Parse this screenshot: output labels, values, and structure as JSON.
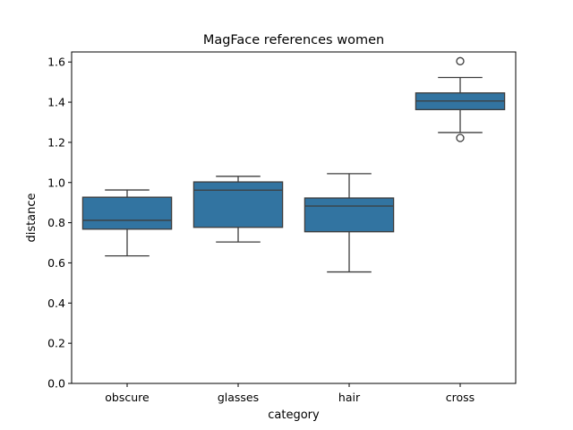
{
  "chart_data": {
    "type": "box",
    "title": "MagFace references women",
    "xlabel": "category",
    "ylabel": "distance",
    "ylim": [
      0.0,
      1.65
    ],
    "yticks": [
      0.0,
      0.2,
      0.4,
      0.6,
      0.8,
      1.0,
      1.2,
      1.4,
      1.6
    ],
    "ytick_labels": [
      "0.0",
      "0.2",
      "0.4",
      "0.6",
      "0.8",
      "1.0",
      "1.2",
      "1.4",
      "1.6"
    ],
    "categories": [
      "obscure",
      "glasses",
      "hair",
      "cross"
    ],
    "boxes": [
      {
        "category": "obscure",
        "whisker_low": 0.635,
        "q1": 0.768,
        "median": 0.812,
        "q3": 0.927,
        "whisker_high": 0.963,
        "outliers": []
      },
      {
        "category": "glasses",
        "whisker_low": 0.704,
        "q1": 0.777,
        "median": 0.962,
        "q3": 1.003,
        "whisker_high": 1.031,
        "outliers": []
      },
      {
        "category": "hair",
        "whisker_low": 0.555,
        "q1": 0.755,
        "median": 0.883,
        "q3": 0.923,
        "whisker_high": 1.044,
        "outliers": []
      },
      {
        "category": "cross",
        "whisker_low": 1.249,
        "q1": 1.363,
        "median": 1.406,
        "q3": 1.446,
        "whisker_high": 1.523,
        "outliers": [
          1.222,
          1.604
        ]
      }
    ],
    "grid": false,
    "colors": {
      "box_fill": "#3274a1",
      "line": "#3d3d3d",
      "axis": "#000000"
    }
  }
}
